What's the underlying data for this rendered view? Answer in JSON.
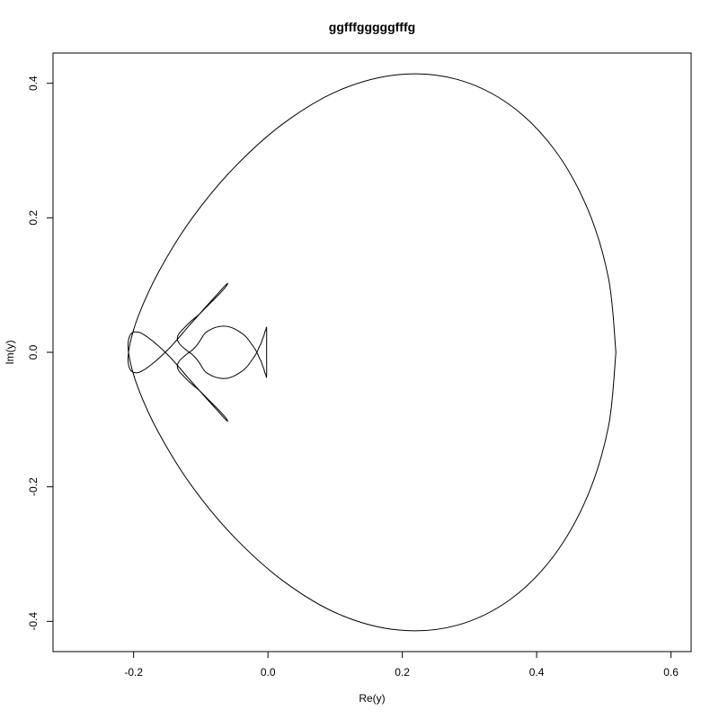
{
  "chart_data": {
    "type": "line",
    "title": "ggfffgggggfffg",
    "xlabel": "Re(y)",
    "ylabel": "Im(y)",
    "xlim": [
      -0.32,
      0.63
    ],
    "ylim": [
      -0.445,
      0.445
    ],
    "x_ticks": [
      -0.2,
      0.0,
      0.2,
      0.4,
      0.6
    ],
    "x_tick_labels": [
      "-0.2",
      "0.0",
      "0.2",
      "0.4",
      "0.6"
    ],
    "y_ticks": [
      -0.4,
      -0.2,
      0.0,
      0.2,
      0.4
    ],
    "y_tick_labels": [
      "-0.4",
      "-0.2",
      "0.0",
      "0.2",
      "0.4"
    ],
    "grid": false,
    "legend": "none",
    "series": [
      {
        "color": "#000000",
        "x": [
          0.518,
          0.507,
          0.476,
          0.426,
          0.36,
          0.281,
          0.195,
          0.107,
          0.024,
          -0.051,
          -0.114,
          -0.162,
          -0.193,
          -0.207,
          -0.206,
          -0.193,
          -0.172,
          -0.145,
          -0.118,
          -0.093,
          -0.074,
          -0.063,
          -0.06,
          -0.064,
          -0.074,
          -0.088,
          -0.102,
          -0.116,
          -0.126,
          -0.133,
          -0.135,
          -0.132,
          -0.126,
          -0.12,
          -0.113,
          -0.108,
          -0.104,
          -0.1,
          -0.097,
          -0.093,
          -0.087,
          -0.081,
          -0.074,
          -0.066,
          -0.058,
          -0.05,
          -0.043,
          -0.036,
          -0.03,
          -0.025,
          -0.02,
          -0.016,
          -0.013,
          -0.01,
          -0.008,
          -0.006,
          -0.005,
          -0.004,
          -0.003,
          -0.002,
          -0.002,
          -0.002,
          -0.003,
          -0.004,
          -0.005,
          -0.006,
          -0.008,
          -0.01,
          -0.013,
          -0.016,
          -0.02,
          -0.025,
          -0.03,
          -0.036,
          -0.043,
          -0.05,
          -0.058,
          -0.066,
          -0.074,
          -0.081,
          -0.087,
          -0.093,
          -0.097,
          -0.1,
          -0.104,
          -0.108,
          -0.113,
          -0.12,
          -0.126,
          -0.132,
          -0.135,
          -0.133,
          -0.126,
          -0.116,
          -0.102,
          -0.088,
          -0.074,
          -0.064,
          -0.06,
          -0.063,
          -0.074,
          -0.093,
          -0.118,
          -0.145,
          -0.172,
          -0.193,
          -0.206,
          -0.207,
          -0.193,
          -0.162,
          -0.114,
          -0.051,
          0.024,
          0.107,
          0.195,
          0.281,
          0.36,
          0.426,
          0.476,
          0.507,
          0.518
        ],
        "y": [
          0.0,
          0.11,
          0.213,
          0.302,
          0.368,
          0.406,
          0.413,
          0.39,
          0.341,
          0.274,
          0.198,
          0.121,
          0.054,
          0.004,
          -0.024,
          -0.03,
          -0.017,
          0.008,
          0.039,
          0.067,
          0.088,
          0.1,
          0.102,
          0.096,
          0.085,
          0.071,
          0.057,
          0.045,
          0.035,
          0.027,
          0.02,
          0.013,
          0.007,
          0.002,
          -0.003,
          -0.008,
          -0.013,
          -0.019,
          -0.024,
          -0.029,
          -0.033,
          -0.036,
          -0.038,
          -0.039,
          -0.038,
          -0.035,
          -0.031,
          -0.026,
          -0.02,
          -0.013,
          -0.006,
          0.001,
          0.008,
          0.014,
          0.02,
          0.025,
          0.029,
          0.032,
          0.034,
          0.035,
          0.0,
          -0.035,
          -0.034,
          -0.032,
          -0.029,
          -0.025,
          -0.02,
          -0.014,
          -0.008,
          -0.001,
          0.006,
          0.013,
          0.02,
          0.026,
          0.031,
          0.035,
          0.038,
          0.039,
          0.038,
          0.036,
          0.033,
          0.029,
          0.024,
          0.019,
          0.013,
          0.008,
          0.003,
          -0.002,
          -0.007,
          -0.013,
          -0.02,
          -0.027,
          -0.035,
          -0.045,
          -0.057,
          -0.071,
          -0.085,
          -0.096,
          -0.102,
          -0.1,
          -0.088,
          -0.067,
          -0.039,
          -0.008,
          0.017,
          0.03,
          0.024,
          -0.004,
          -0.054,
          -0.121,
          -0.198,
          -0.274,
          -0.341,
          -0.39,
          -0.413,
          -0.406,
          -0.368,
          -0.302,
          -0.213,
          -0.11,
          0.0
        ]
      }
    ]
  }
}
